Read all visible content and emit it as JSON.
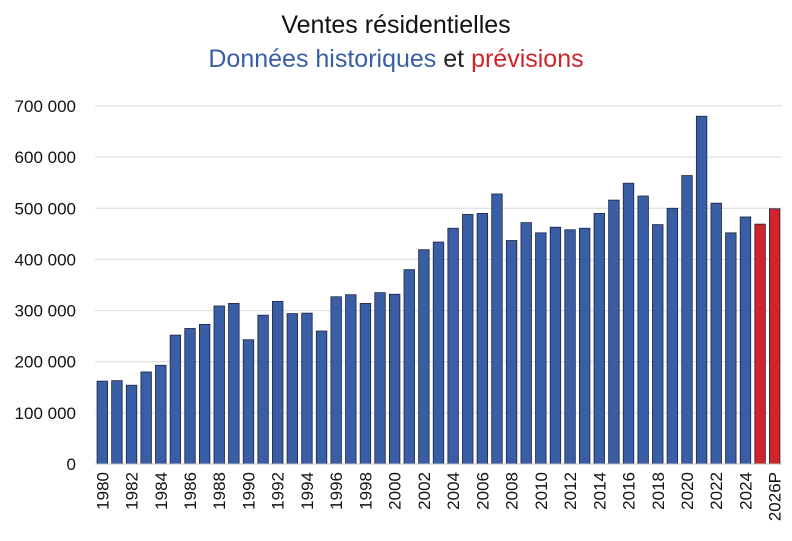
{
  "chart_data": {
    "type": "bar",
    "title": "Ventes résidentielles",
    "subtitle": {
      "part1": "Données historiques",
      "part2": "et",
      "part3": "prévisions"
    },
    "xlabel": "",
    "ylabel": "",
    "ylim": [
      0,
      700000
    ],
    "yticks": [
      0,
      100000,
      200000,
      300000,
      400000,
      500000,
      600000,
      700000
    ],
    "ytick_labels": [
      "0",
      "100 000",
      "200 000",
      "300 000",
      "400 000",
      "500 000",
      "600 000",
      "700 000"
    ],
    "grid": true,
    "colors": {
      "historical": "#3a5ea6",
      "forecast": "#d1232a",
      "bar_edge": "#1b2540",
      "grid": "#d9d9d9"
    },
    "categories": [
      "1980",
      "1981",
      "1982",
      "1983",
      "1984",
      "1985",
      "1986",
      "1987",
      "1988",
      "1989",
      "1990",
      "1991",
      "1992",
      "1993",
      "1994",
      "1995",
      "1996",
      "1997",
      "1998",
      "1999",
      "2000",
      "2001",
      "2002",
      "2003",
      "2004",
      "2005",
      "2006",
      "2007",
      "2008",
      "2009",
      "2010",
      "2011",
      "2012",
      "2013",
      "2014",
      "2015",
      "2016",
      "2017",
      "2018",
      "2019",
      "2020",
      "2021",
      "2022",
      "2023",
      "2024",
      "2025",
      "2026P"
    ],
    "tick_labels": [
      "1980",
      "",
      "1982",
      "",
      "1984",
      "",
      "1986",
      "",
      "1988",
      "",
      "1990",
      "",
      "1992",
      "",
      "1994",
      "",
      "1996",
      "",
      "1998",
      "",
      "2000",
      "",
      "2002",
      "",
      "2004",
      "",
      "2006",
      "",
      "2008",
      "",
      "2010",
      "",
      "2012",
      "",
      "2014",
      "",
      "2016",
      "",
      "2018",
      "",
      "2020",
      "",
      "2022",
      "",
      "2024",
      "",
      "2026P"
    ],
    "values": [
      162000,
      163000,
      154000,
      180000,
      193000,
      252000,
      265000,
      273000,
      309000,
      314000,
      243000,
      291000,
      318000,
      294000,
      295000,
      260000,
      327000,
      331000,
      314000,
      335000,
      332000,
      380000,
      419000,
      434000,
      461000,
      488000,
      490000,
      528000,
      437000,
      472000,
      452000,
      463000,
      458000,
      461000,
      490000,
      516000,
      549000,
      524000,
      468000,
      500000,
      564000,
      680000,
      510000,
      452000,
      483000,
      469000,
      499000
    ],
    "forecast_from_index": 45
  }
}
